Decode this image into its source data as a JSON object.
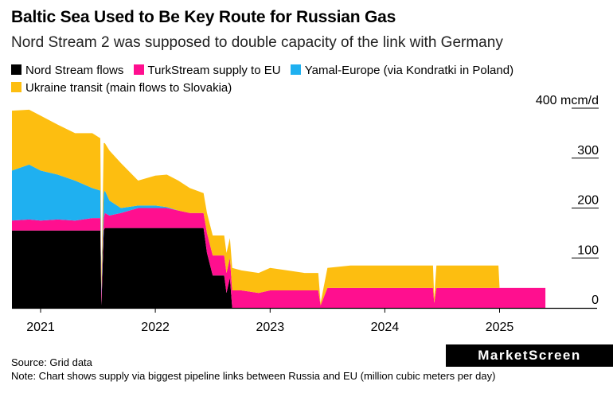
{
  "title": "Baltic Sea Used to Be Key Route for Russian Gas",
  "subtitle": "Nord Stream 2 was supposed to double capacity of the link with Germany",
  "source": "Source: Grid data",
  "note": "Note: Chart shows supply via biggest pipeline links between Russia and EU (million cubic meters per day)",
  "logo": "MarketScreen",
  "chart_data": {
    "type": "area",
    "stacked": true,
    "title": "Baltic Sea Used to Be Key Route for Russian Gas",
    "ylabel": "mcm/d",
    "ylim": [
      0,
      400
    ],
    "yticks": [
      0,
      100,
      200,
      300,
      400
    ],
    "ytick_labels": [
      "0",
      "100",
      "200",
      "300",
      "400 mcm/d"
    ],
    "xticks": [
      2021,
      2022,
      2023,
      2024,
      2025
    ],
    "xtick_labels": [
      "2021",
      "2022",
      "2023",
      "2024",
      "2025"
    ],
    "xlim": [
      2020.75,
      2025.85
    ],
    "x": [
      2020.75,
      2020.9,
      2021.0,
      2021.15,
      2021.3,
      2021.45,
      2021.52,
      2021.53,
      2021.55,
      2021.56,
      2021.6,
      2021.7,
      2021.85,
      2022.0,
      2022.1,
      2022.2,
      2022.3,
      2022.42,
      2022.45,
      2022.5,
      2022.6,
      2022.62,
      2022.65,
      2022.67,
      2022.75,
      2022.9,
      2023.0,
      2023.15,
      2023.3,
      2023.42,
      2023.44,
      2023.5,
      2023.7,
      2023.9,
      2024.1,
      2024.3,
      2024.42,
      2024.43,
      2024.45,
      2024.6,
      2024.8,
      2024.99,
      2025.0,
      2025.2,
      2025.4
    ],
    "series": [
      {
        "name": "Nord Stream flows",
        "color": "#000000",
        "values": [
          155,
          155,
          155,
          155,
          155,
          155,
          155,
          5,
          155,
          160,
          160,
          160,
          160,
          160,
          160,
          160,
          160,
          160,
          110,
          65,
          65,
          30,
          60,
          0,
          0,
          0,
          0,
          0,
          0,
          0,
          0,
          0,
          0,
          0,
          0,
          0,
          0,
          0,
          0,
          0,
          0,
          0,
          0,
          0,
          0
        ]
      },
      {
        "name": "TurkStream supply to EU",
        "color": "#ff0f8f",
        "values": [
          20,
          22,
          20,
          22,
          20,
          25,
          25,
          20,
          25,
          30,
          25,
          30,
          40,
          40,
          40,
          35,
          30,
          30,
          40,
          40,
          40,
          40,
          40,
          35,
          35,
          30,
          35,
          35,
          35,
          35,
          5,
          40,
          40,
          40,
          40,
          40,
          40,
          10,
          40,
          40,
          40,
          40,
          40,
          40,
          40
        ]
      },
      {
        "name": "Yamal-Europe (via Kondratki in Poland)",
        "color": "#1fb0f0",
        "values": [
          100,
          110,
          100,
          90,
          80,
          60,
          55,
          10,
          50,
          45,
          30,
          10,
          5,
          5,
          2,
          0,
          0,
          0,
          0,
          0,
          0,
          0,
          0,
          0,
          0,
          0,
          0,
          0,
          0,
          0,
          0,
          0,
          0,
          0,
          0,
          0,
          0,
          0,
          0,
          0,
          0,
          0,
          0,
          0,
          0
        ]
      },
      {
        "name": "Ukraine transit (main flows to Slovakia)",
        "color": "#fdbe10",
        "values": [
          120,
          110,
          110,
          100,
          95,
          110,
          105,
          20,
          100,
          95,
          100,
          90,
          50,
          60,
          65,
          60,
          50,
          40,
          40,
          40,
          40,
          40,
          40,
          45,
          40,
          40,
          45,
          40,
          35,
          35,
          5,
          40,
          45,
          45,
          45,
          45,
          45,
          10,
          45,
          45,
          45,
          45,
          0,
          0,
          0
        ]
      }
    ],
    "legend": [
      "Nord Stream flows",
      "TurkStream supply to EU",
      "Yamal-Europe (via Kondratki in Poland)",
      "Ukraine transit (main flows to Slovakia)"
    ],
    "legend_position": "top-left",
    "grid": false
  }
}
